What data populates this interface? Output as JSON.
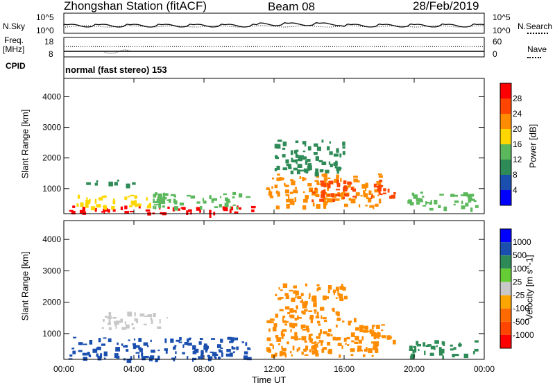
{
  "header": {
    "station": "Zhongshan Station (fitACF)",
    "beam": "Beam 08",
    "date": "28/Feb/2019"
  },
  "strip": {
    "nsky_label": "N.Sky",
    "nsearch_label": "N.Search",
    "nsky_ticks": [
      "10^5",
      "10^0"
    ],
    "nsearch_ticks": [
      "10^5",
      "10^0"
    ],
    "freq_label": "Freq.",
    "freq_unit": "[MHz]",
    "freq_ticks": [
      "18",
      "8"
    ],
    "nave_label": "Nave",
    "nave_ticks": [
      "60",
      "0"
    ],
    "cpid_label": "CPID",
    "cpid_text": "normal (fast stereo) 153"
  },
  "colors": {
    "power": [
      "#0000ff",
      "#1a4fb0",
      "#2e8b57",
      "#5cb85c",
      "#ffd700",
      "#ff8c00",
      "#ff4500",
      "#ff0000"
    ],
    "velocity": [
      "#0000ff",
      "#1a4fb0",
      "#2e8b57",
      "#66cc33",
      "#c8c8c8",
      "#ffa500",
      "#ff6a00",
      "#ff4500",
      "#ff0000"
    ],
    "noise_series": "#000000"
  },
  "chart_data": [
    {
      "type": "heatmap",
      "title": "Power",
      "ylabel": "Slant Range [km]",
      "xlabel": "",
      "x_ticks": [
        "00:00",
        "04:00",
        "08:00",
        "12:00",
        "16:00",
        "20:00",
        "00:00"
      ],
      "y_ticks": [
        1000,
        2000,
        3000,
        4000
      ],
      "ylim": [
        180,
        4600
      ],
      "xlim_hours": [
        0,
        24
      ],
      "colorbar": {
        "label": "Power",
        "unit": "[dB]",
        "ticks": [
          "4",
          "8",
          "12",
          "16",
          "20",
          "24",
          "28"
        ]
      },
      "regions": [
        {
          "t": [
            0.2,
            11.0
          ],
          "r": [
            200,
            450
          ],
          "level": 28
        },
        {
          "t": [
            0.2,
            5.0
          ],
          "r": [
            400,
            800
          ],
          "level": 16
        },
        {
          "t": [
            5.0,
            10.5
          ],
          "r": [
            400,
            900
          ],
          "level": 12
        },
        {
          "t": [
            1.0,
            4.0
          ],
          "r": [
            1150,
            1300
          ],
          "level": 8
        },
        {
          "t": [
            11.5,
            18.0
          ],
          "r": [
            400,
            1500
          ],
          "level": 20
        },
        {
          "t": [
            14.0,
            16.5
          ],
          "r": [
            600,
            1300
          ],
          "level": 24
        },
        {
          "t": [
            17.5,
            19.0
          ],
          "r": [
            700,
            1300
          ],
          "level": 26
        },
        {
          "t": [
            19.5,
            23.5
          ],
          "r": [
            350,
            900
          ],
          "level": 12
        },
        {
          "t": [
            12.0,
            16.0
          ],
          "r": [
            1500,
            2600
          ],
          "level": 8
        }
      ]
    },
    {
      "type": "heatmap",
      "title": "Velocity",
      "ylabel": "Slant Range [km]",
      "xlabel": "Time UT",
      "x_ticks": [
        "00:00",
        "04:00",
        "08:00",
        "12:00",
        "16:00",
        "20:00",
        "00:00"
      ],
      "y_ticks": [
        1000,
        2000,
        3000,
        4000
      ],
      "ylim": [
        180,
        4600
      ],
      "xlim_hours": [
        0,
        24
      ],
      "colorbar": {
        "label": "Velocity",
        "unit": "[m s^-1]",
        "ticks": [
          "1000",
          "500",
          "100",
          "25",
          "-25",
          "-100",
          "-500",
          "-1000"
        ]
      },
      "regions": [
        {
          "t": [
            0.2,
            10.5
          ],
          "r": [
            200,
            900
          ],
          "level": 500
        },
        {
          "t": [
            2.0,
            6.0
          ],
          "r": [
            1200,
            1700
          ],
          "level": 0
        },
        {
          "t": [
            11.5,
            18.0
          ],
          "r": [
            300,
            1500
          ],
          "level": -300
        },
        {
          "t": [
            17.5,
            19.0
          ],
          "r": [
            700,
            1300
          ],
          "level": -400
        },
        {
          "t": [
            19.5,
            23.5
          ],
          "r": [
            300,
            800
          ],
          "level": 200
        },
        {
          "t": [
            12.0,
            16.0
          ],
          "r": [
            1500,
            2600
          ],
          "level": -150
        }
      ]
    }
  ]
}
